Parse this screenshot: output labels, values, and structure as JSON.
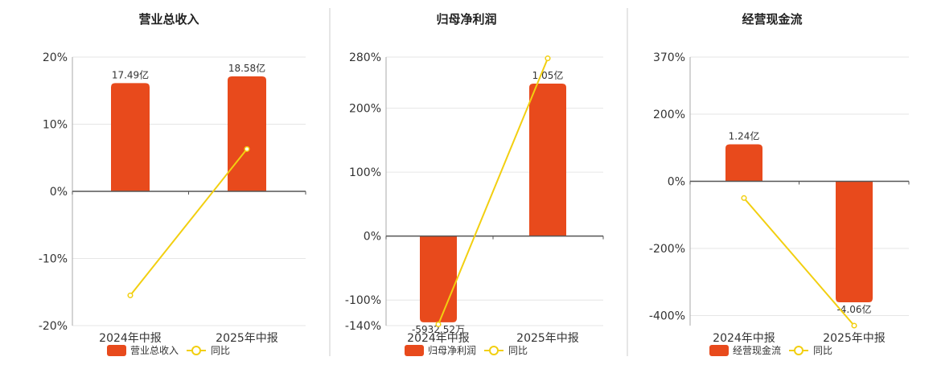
{
  "colors": {
    "bar": "#e84a1c",
    "line": "#f2cf10",
    "axis": "#555555",
    "grid": "#e6e6e6",
    "divider": "#cccccc",
    "text": "#333333"
  },
  "chart_data": [
    {
      "type": "bar",
      "title": "营业总收入",
      "categories": [
        "2024年中报",
        "2025年中报"
      ],
      "series": [
        {
          "name": "营业总收入",
          "type": "bar",
          "values": [
            17.49,
            18.58
          ],
          "labels": [
            "17.49亿",
            "18.58亿"
          ],
          "unit": "亿"
        },
        {
          "name": "同比",
          "type": "line",
          "values": [
            -15.5,
            6.3
          ],
          "unit": "%"
        }
      ],
      "y_ticks": [
        "20%",
        "10%",
        "0%",
        "-10%",
        "-20%"
      ],
      "ylim": [
        -20,
        20
      ]
    },
    {
      "type": "bar",
      "title": "归母净利润",
      "categories": [
        "2024年中报",
        "2025年中报"
      ],
      "series": [
        {
          "name": "归母净利润",
          "type": "bar",
          "values": [
            -0.593252,
            1.05
          ],
          "labels": [
            "-5932.52万",
            "1.05亿"
          ],
          "unit": "亿"
        },
        {
          "name": "同比",
          "type": "line",
          "values": [
            -138,
            278
          ],
          "unit": "%"
        }
      ],
      "y_ticks": [
        "280%",
        "200%",
        "100%",
        "0%",
        "-100%",
        "-140%"
      ],
      "ylim": [
        -140,
        280
      ]
    },
    {
      "type": "bar",
      "title": "经营现金流",
      "categories": [
        "2024年中报",
        "2025年中报"
      ],
      "series": [
        {
          "name": "经营现金流",
          "type": "bar",
          "values": [
            1.24,
            -4.06
          ],
          "labels": [
            "1.24亿",
            "-4.06亿"
          ],
          "unit": "亿"
        },
        {
          "name": "同比",
          "type": "line",
          "values": [
            -50,
            -430
          ],
          "unit": "%"
        }
      ],
      "y_ticks": [
        "370%",
        "200%",
        "0%",
        "-200%",
        "-400%"
      ],
      "ylim": [
        -430,
        370
      ]
    }
  ]
}
